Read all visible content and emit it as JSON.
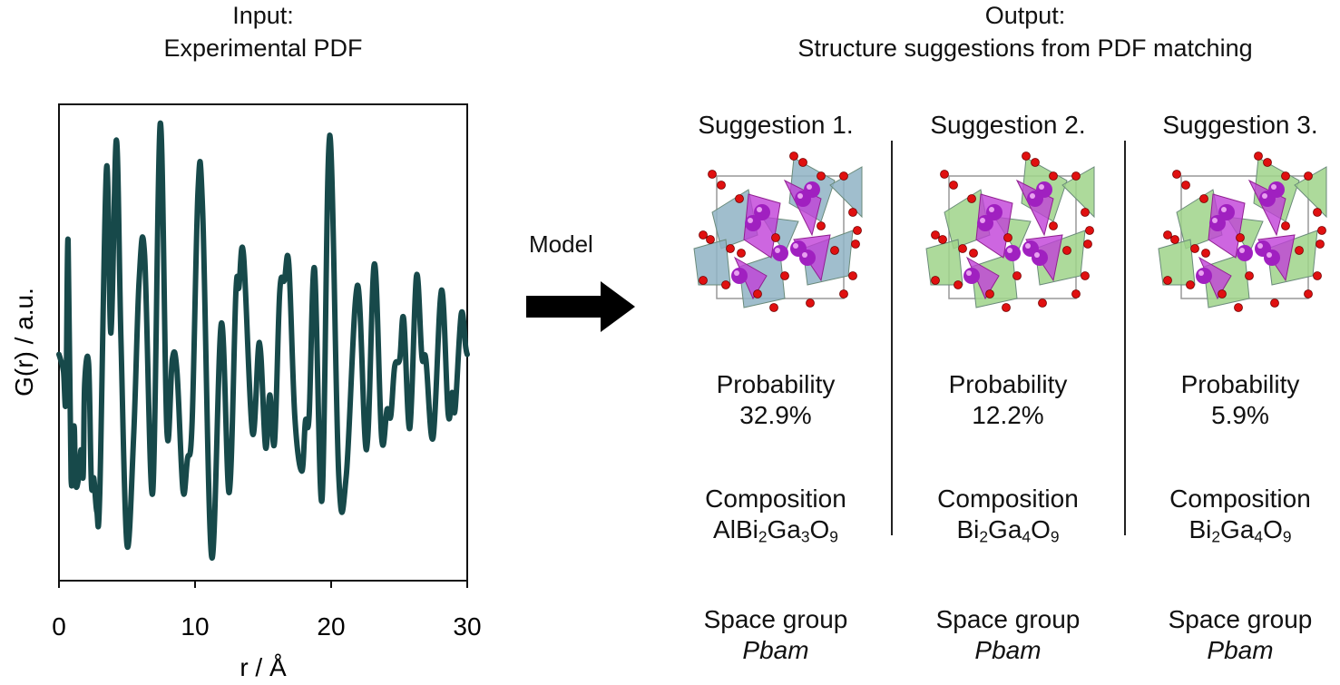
{
  "input": {
    "label": "Input:",
    "title": "Experimental PDF"
  },
  "output": {
    "label": "Output:",
    "title": "Structure suggestions from PDF matching"
  },
  "model_label": "Model",
  "suggestions": [
    {
      "title": "Suggestion 1.",
      "probability_label": "Probability",
      "probability": "32.9%",
      "composition_label": "Composition",
      "composition": "AlBi2Ga3O9",
      "space_group_label": "Space group",
      "space_group": "Pbam",
      "polyhedra_color": "#8fb3c4"
    },
    {
      "title": "Suggestion 2.",
      "probability_label": "Probability",
      "probability": "12.2%",
      "composition_label": "Composition",
      "composition": "Bi2Ga4O9",
      "space_group_label": "Space group",
      "space_group": "Pbam",
      "polyhedra_color": "#9fd48a"
    },
    {
      "title": "Suggestion 3.",
      "probability_label": "Probability",
      "probability": "5.9%",
      "composition_label": "Composition",
      "composition": "Bi2Ga4O9",
      "space_group_label": "Space group",
      "space_group": "Pbam",
      "polyhedra_color": "#9fd48a"
    }
  ],
  "colors": {
    "line": "#17494a",
    "bi_atom": "#a020c0",
    "bi_polyhedra": "#c040d8",
    "oxygen": "#e01010"
  },
  "chart_data": {
    "type": "line",
    "xlabel": "r / Å",
    "ylabel": "G(r) / a.u.",
    "xlim": [
      0,
      30
    ],
    "ylim": [
      -1,
      1
    ],
    "xticks": [
      "0",
      "10",
      "20",
      "30"
    ],
    "yticks": [],
    "grid": false,
    "x": [
      0.0,
      0.11,
      0.33,
      0.51,
      0.67,
      0.89,
      1.11,
      1.22,
      1.44,
      1.62,
      1.78,
      1.89,
      2.18,
      2.38,
      2.56,
      2.78,
      3.0,
      3.49,
      3.82,
      4.22,
      4.56,
      5.0,
      5.49,
      5.89,
      6.29,
      6.89,
      7.44,
      7.93,
      8.33,
      8.67,
      9.11,
      9.44,
      9.78,
      10.22,
      10.56,
      11.22,
      11.93,
      12.51,
      13.0,
      13.22,
      13.56,
      14.22,
      14.73,
      15.18,
      15.49,
      15.84,
      16.22,
      16.56,
      16.89,
      17.33,
      17.84,
      18.11,
      18.38,
      18.78,
      19.33,
      19.89,
      20.56,
      21.11,
      21.93,
      22.6,
      23.18,
      23.71,
      24.11,
      24.38,
      24.67,
      25.04,
      25.33,
      25.78,
      26.27,
      26.67,
      26.96,
      27.49,
      28.11,
      28.6,
      28.89,
      29.11,
      29.56,
      29.89,
      30.0
    ],
    "y": [
      -0.05,
      -0.07,
      -0.12,
      -0.24,
      0.43,
      -0.57,
      -0.35,
      -0.59,
      -0.57,
      -0.45,
      -0.56,
      -0.17,
      -0.09,
      -0.59,
      -0.57,
      -0.71,
      -0.63,
      0.73,
      0.04,
      0.85,
      0.0,
      -0.85,
      -0.39,
      0.26,
      0.37,
      -0.63,
      0.92,
      -0.37,
      -0.07,
      -0.12,
      -0.62,
      -0.49,
      -0.34,
      0.64,
      0.55,
      -0.9,
      0.08,
      -0.63,
      0.21,
      0.23,
      0.37,
      -0.38,
      0.0,
      -0.44,
      -0.22,
      -0.42,
      0.21,
      0.26,
      0.33,
      -0.31,
      -0.54,
      -0.33,
      -0.31,
      0.31,
      -0.66,
      0.87,
      -0.56,
      -0.56,
      0.24,
      -0.45,
      0.33,
      -0.4,
      -0.28,
      -0.31,
      -0.1,
      -0.07,
      0.1,
      -0.36,
      0.28,
      -0.06,
      -0.07,
      -0.4,
      0.22,
      -0.3,
      -0.21,
      -0.28,
      0.12,
      -0.02,
      -0.05
    ]
  }
}
